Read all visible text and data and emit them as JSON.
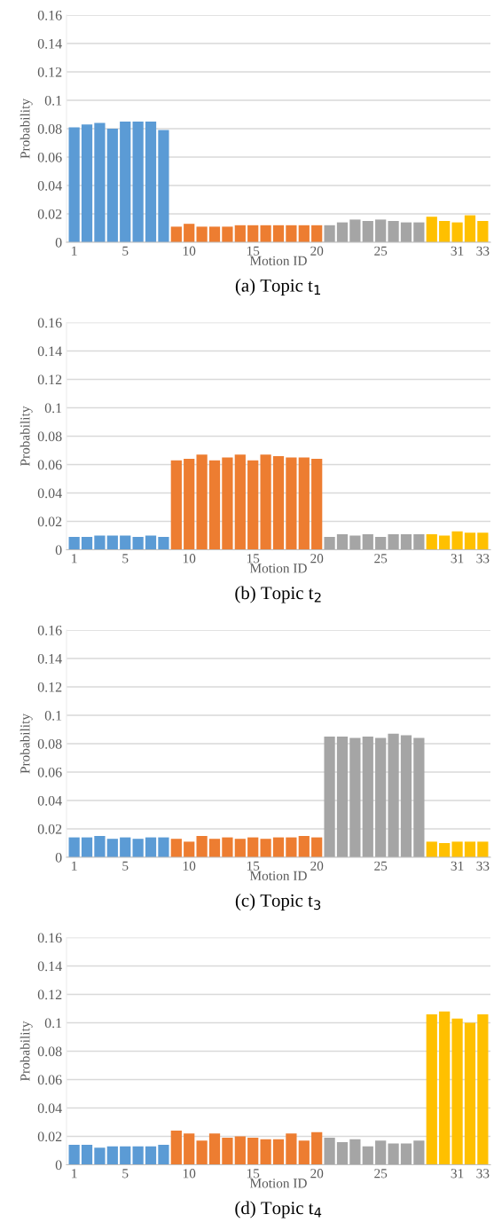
{
  "chart_data": [
    {
      "type": "bar",
      "title": "(a) Topic t$_{1}$",
      "xlabel": "Motion ID",
      "ylabel": "Probability",
      "categories": [
        "1",
        null,
        null,
        null,
        "5",
        null,
        null,
        null,
        null,
        "10",
        null,
        null,
        null,
        null,
        "15",
        null,
        null,
        null,
        null,
        "20",
        null,
        null,
        null,
        null,
        "25",
        null,
        null,
        null,
        null,
        null,
        "31",
        null,
        "33"
      ],
      "values": [
        0.081,
        0.083,
        0.084,
        0.08,
        0.085,
        0.085,
        0.085,
        0.079,
        0.011,
        0.013,
        0.011,
        0.011,
        0.011,
        0.012,
        0.012,
        0.012,
        0.012,
        0.012,
        0.012,
        0.012,
        0.012,
        0.014,
        0.016,
        0.015,
        0.016,
        0.015,
        0.014,
        0.014,
        0.018,
        0.015,
        0.014,
        0.019,
        0.015
      ],
      "colors": [
        "#5b9bd5",
        "#5b9bd5",
        "#5b9bd5",
        "#5b9bd5",
        "#5b9bd5",
        "#5b9bd5",
        "#5b9bd5",
        "#5b9bd5",
        "#ed7d31",
        "#ed7d31",
        "#ed7d31",
        "#ed7d31",
        "#ed7d31",
        "#ed7d31",
        "#ed7d31",
        "#ed7d31",
        "#ed7d31",
        "#ed7d31",
        "#ed7d31",
        "#ed7d31",
        "#a5a5a5",
        "#a5a5a5",
        "#a5a5a5",
        "#a5a5a5",
        "#a5a5a5",
        "#a5a5a5",
        "#a5a5a5",
        "#a5a5a5",
        "#ffc000",
        "#ffc000",
        "#ffc000",
        "#ffc000",
        "#ffc000"
      ],
      "ylim": [
        0,
        0.16
      ],
      "yticks": [
        0,
        0.02,
        0.04,
        0.06,
        0.08,
        0.1,
        0.12,
        0.14,
        0.16
      ],
      "grid": "y"
    },
    {
      "type": "bar",
      "title": "(b) Topic t$_{2}$",
      "xlabel": "Motion ID",
      "ylabel": "Probability",
      "categories": [
        "1",
        null,
        null,
        null,
        "5",
        null,
        null,
        null,
        null,
        "10",
        null,
        null,
        null,
        null,
        "15",
        null,
        null,
        null,
        null,
        "20",
        null,
        null,
        null,
        null,
        "25",
        null,
        null,
        null,
        null,
        null,
        "31",
        null,
        "33"
      ],
      "values": [
        0.009,
        0.009,
        0.01,
        0.01,
        0.01,
        0.009,
        0.01,
        0.009,
        0.063,
        0.064,
        0.067,
        0.063,
        0.065,
        0.067,
        0.063,
        0.067,
        0.066,
        0.065,
        0.065,
        0.064,
        0.009,
        0.011,
        0.01,
        0.011,
        0.009,
        0.011,
        0.011,
        0.011,
        0.011,
        0.01,
        0.013,
        0.012,
        0.012
      ],
      "colors": [
        "#5b9bd5",
        "#5b9bd5",
        "#5b9bd5",
        "#5b9bd5",
        "#5b9bd5",
        "#5b9bd5",
        "#5b9bd5",
        "#5b9bd5",
        "#ed7d31",
        "#ed7d31",
        "#ed7d31",
        "#ed7d31",
        "#ed7d31",
        "#ed7d31",
        "#ed7d31",
        "#ed7d31",
        "#ed7d31",
        "#ed7d31",
        "#ed7d31",
        "#ed7d31",
        "#a5a5a5",
        "#a5a5a5",
        "#a5a5a5",
        "#a5a5a5",
        "#a5a5a5",
        "#a5a5a5",
        "#a5a5a5",
        "#a5a5a5",
        "#ffc000",
        "#ffc000",
        "#ffc000",
        "#ffc000",
        "#ffc000"
      ],
      "ylim": [
        0,
        0.16
      ],
      "yticks": [
        0,
        0.02,
        0.04,
        0.06,
        0.08,
        0.1,
        0.12,
        0.14,
        0.16
      ],
      "grid": "y"
    },
    {
      "type": "bar",
      "title": "(c) Topic t$_{3}$",
      "xlabel": "Motion ID",
      "ylabel": "Probability",
      "categories": [
        "1",
        null,
        null,
        null,
        "5",
        null,
        null,
        null,
        null,
        "10",
        null,
        null,
        null,
        null,
        "15",
        null,
        null,
        null,
        null,
        "20",
        null,
        null,
        null,
        null,
        "25",
        null,
        null,
        null,
        null,
        null,
        "31",
        null,
        "33"
      ],
      "values": [
        0.014,
        0.014,
        0.015,
        0.013,
        0.014,
        0.013,
        0.014,
        0.014,
        0.013,
        0.011,
        0.015,
        0.013,
        0.014,
        0.013,
        0.014,
        0.013,
        0.014,
        0.014,
        0.015,
        0.014,
        0.085,
        0.085,
        0.084,
        0.085,
        0.084,
        0.087,
        0.086,
        0.084,
        0.011,
        0.01,
        0.011,
        0.011,
        0.011
      ],
      "colors": [
        "#5b9bd5",
        "#5b9bd5",
        "#5b9bd5",
        "#5b9bd5",
        "#5b9bd5",
        "#5b9bd5",
        "#5b9bd5",
        "#5b9bd5",
        "#ed7d31",
        "#ed7d31",
        "#ed7d31",
        "#ed7d31",
        "#ed7d31",
        "#ed7d31",
        "#ed7d31",
        "#ed7d31",
        "#ed7d31",
        "#ed7d31",
        "#ed7d31",
        "#ed7d31",
        "#a5a5a5",
        "#a5a5a5",
        "#a5a5a5",
        "#a5a5a5",
        "#a5a5a5",
        "#a5a5a5",
        "#a5a5a5",
        "#a5a5a5",
        "#ffc000",
        "#ffc000",
        "#ffc000",
        "#ffc000",
        "#ffc000"
      ],
      "ylim": [
        0,
        0.16
      ],
      "yticks": [
        0,
        0.02,
        0.04,
        0.06,
        0.08,
        0.1,
        0.12,
        0.14,
        0.16
      ],
      "grid": "y"
    },
    {
      "type": "bar",
      "title": "(d) Topic t$_{4}$",
      "xlabel": "Motion ID",
      "ylabel": "Probability",
      "categories": [
        "1",
        null,
        null,
        null,
        "5",
        null,
        null,
        null,
        null,
        "10",
        null,
        null,
        null,
        null,
        "15",
        null,
        null,
        null,
        null,
        "20",
        null,
        null,
        null,
        null,
        "25",
        null,
        null,
        null,
        null,
        null,
        "31",
        null,
        "33"
      ],
      "values": [
        0.014,
        0.014,
        0.012,
        0.013,
        0.013,
        0.013,
        0.013,
        0.014,
        0.024,
        0.022,
        0.017,
        0.022,
        0.019,
        0.02,
        0.019,
        0.018,
        0.018,
        0.022,
        0.017,
        0.023,
        0.019,
        0.016,
        0.018,
        0.013,
        0.017,
        0.015,
        0.015,
        0.017,
        0.106,
        0.108,
        0.103,
        0.1,
        0.106
      ],
      "colors": [
        "#5b9bd5",
        "#5b9bd5",
        "#5b9bd5",
        "#5b9bd5",
        "#5b9bd5",
        "#5b9bd5",
        "#5b9bd5",
        "#5b9bd5",
        "#ed7d31",
        "#ed7d31",
        "#ed7d31",
        "#ed7d31",
        "#ed7d31",
        "#ed7d31",
        "#ed7d31",
        "#ed7d31",
        "#ed7d31",
        "#ed7d31",
        "#ed7d31",
        "#ed7d31",
        "#a5a5a5",
        "#a5a5a5",
        "#a5a5a5",
        "#a5a5a5",
        "#a5a5a5",
        "#a5a5a5",
        "#a5a5a5",
        "#a5a5a5",
        "#ffc000",
        "#ffc000",
        "#ffc000",
        "#ffc000",
        "#ffc000"
      ],
      "ylim": [
        0,
        0.16
      ],
      "yticks": [
        0,
        0.02,
        0.04,
        0.06,
        0.08,
        0.1,
        0.12,
        0.14,
        0.16
      ],
      "grid": "y"
    }
  ]
}
